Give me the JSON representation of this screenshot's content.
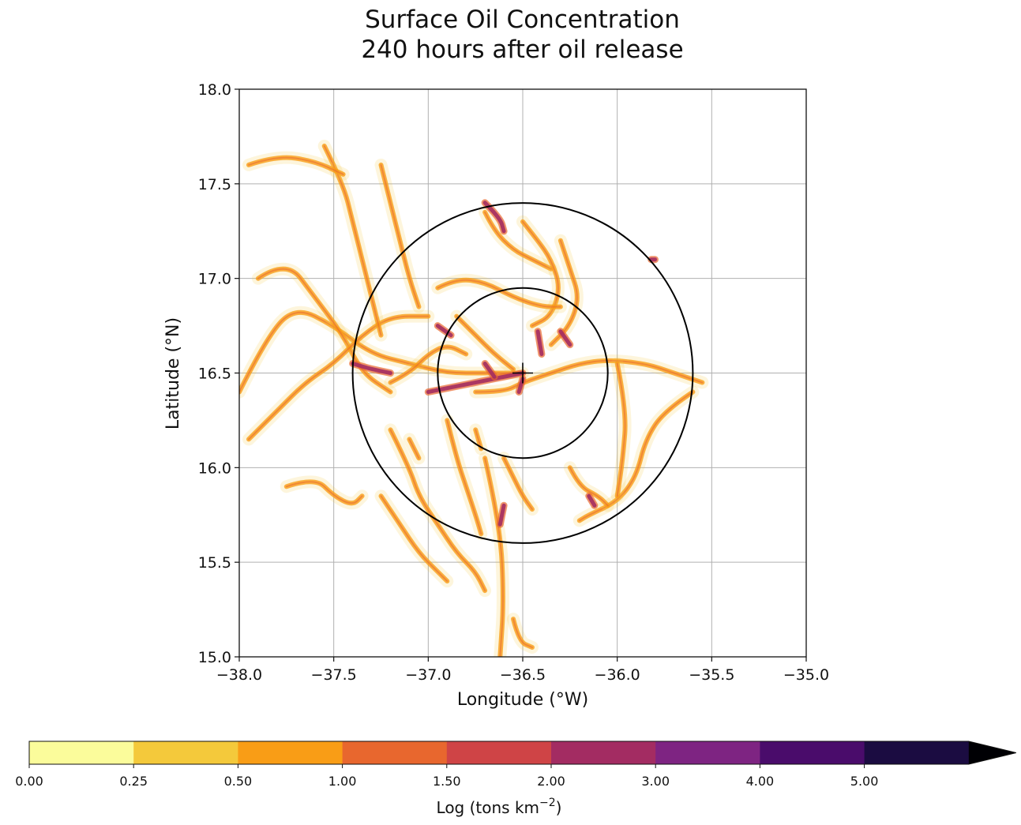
{
  "chart_data": {
    "type": "heatmap",
    "title": "Surface Oil Concentration",
    "subtitle": "240 hours after oil release",
    "xlabel": "Longitude (°W)",
    "ylabel": "Latitude (°N)",
    "xlim": [
      -38.0,
      -35.0
    ],
    "ylim": [
      15.0,
      18.0
    ],
    "xticks": [
      -38.0,
      -37.5,
      -37.0,
      -36.5,
      -36.0,
      -35.5,
      -35.0
    ],
    "xtick_labels": [
      "−38.0",
      "−37.5",
      "−37.0",
      "−36.5",
      "−36.0",
      "−35.5",
      "−35.0"
    ],
    "yticks": [
      15.0,
      15.5,
      16.0,
      16.5,
      17.0,
      17.5,
      18.0
    ],
    "ytick_labels": [
      "15.0",
      "15.5",
      "16.0",
      "16.5",
      "17.0",
      "17.5",
      "18.0"
    ],
    "grid": true,
    "release_point": {
      "lon": -36.5,
      "lat": 16.5
    },
    "range_circles_deg": [
      0.45,
      0.9
    ],
    "colorbar": {
      "label": "Log (tons km",
      "label_sup": "−2",
      "label_end": ")",
      "boundaries": [
        0.0,
        0.25,
        0.5,
        1.0,
        1.5,
        2.0,
        3.0,
        4.0,
        5.0
      ],
      "tick_labels": [
        "0.00",
        "0.25",
        "0.50",
        "1.00",
        "1.50",
        "2.00",
        "3.00",
        "4.00",
        "5.00"
      ],
      "colors": [
        "#fbfc9b",
        "#f4c93b",
        "#f99d16",
        "#e8672e",
        "#cf4446",
        "#a32c62",
        "#7e2482",
        "#4a0c6b",
        "#1b0c41"
      ],
      "extend_color": "#000004",
      "extend": "max"
    },
    "oil_trails": [
      {
        "level": "low",
        "points": [
          [
            -38.0,
            16.4
          ],
          [
            -37.85,
            16.7
          ],
          [
            -37.7,
            16.85
          ],
          [
            -37.5,
            16.75
          ],
          [
            -37.3,
            16.6
          ],
          [
            -37.1,
            16.55
          ],
          [
            -36.9,
            16.5
          ],
          [
            -36.7,
            16.5
          ],
          [
            -36.5,
            16.5
          ]
        ]
      },
      {
        "level": "low",
        "points": [
          [
            -37.9,
            17.0
          ],
          [
            -37.75,
            17.1
          ],
          [
            -37.6,
            16.9
          ],
          [
            -37.45,
            16.7
          ],
          [
            -37.35,
            16.5
          ],
          [
            -37.2,
            16.4
          ]
        ]
      },
      {
        "level": "low",
        "points": [
          [
            -37.95,
            16.15
          ],
          [
            -37.8,
            16.3
          ],
          [
            -37.65,
            16.45
          ],
          [
            -37.5,
            16.55
          ],
          [
            -37.35,
            16.7
          ],
          [
            -37.2,
            16.8
          ],
          [
            -37.0,
            16.8
          ]
        ]
      },
      {
        "level": "low",
        "points": [
          [
            -37.55,
            17.7
          ],
          [
            -37.45,
            17.5
          ],
          [
            -37.4,
            17.3
          ],
          [
            -37.35,
            17.1
          ],
          [
            -37.3,
            16.9
          ],
          [
            -37.25,
            16.7
          ]
        ]
      },
      {
        "level": "low",
        "points": [
          [
            -37.25,
            17.6
          ],
          [
            -37.2,
            17.4
          ],
          [
            -37.15,
            17.2
          ],
          [
            -37.1,
            17.0
          ],
          [
            -37.05,
            16.85
          ]
        ]
      },
      {
        "level": "low",
        "points": [
          [
            -37.95,
            17.6
          ],
          [
            -37.8,
            17.65
          ],
          [
            -37.6,
            17.62
          ],
          [
            -37.45,
            17.55
          ]
        ]
      },
      {
        "level": "low",
        "points": [
          [
            -36.7,
            17.35
          ],
          [
            -36.65,
            17.25
          ],
          [
            -36.55,
            17.15
          ],
          [
            -36.45,
            17.1
          ],
          [
            -36.35,
            17.05
          ]
        ]
      },
      {
        "level": "low",
        "points": [
          [
            -36.5,
            17.3
          ],
          [
            -36.42,
            17.2
          ],
          [
            -36.35,
            17.1
          ],
          [
            -36.3,
            16.95
          ],
          [
            -36.35,
            16.8
          ],
          [
            -36.45,
            16.75
          ]
        ]
      },
      {
        "level": "low",
        "points": [
          [
            -36.3,
            17.2
          ],
          [
            -36.25,
            17.05
          ],
          [
            -36.2,
            16.9
          ],
          [
            -36.25,
            16.75
          ],
          [
            -36.35,
            16.65
          ]
        ]
      },
      {
        "level": "low",
        "points": [
          [
            -36.85,
            16.8
          ],
          [
            -36.75,
            16.7
          ],
          [
            -36.65,
            16.6
          ],
          [
            -36.55,
            16.52
          ]
        ]
      },
      {
        "level": "low",
        "points": [
          [
            -36.75,
            16.4
          ],
          [
            -36.6,
            16.4
          ],
          [
            -36.5,
            16.45
          ],
          [
            -36.35,
            16.5
          ],
          [
            -36.2,
            16.55
          ],
          [
            -36.05,
            16.57
          ],
          [
            -35.85,
            16.55
          ],
          [
            -35.7,
            16.5
          ],
          [
            -35.55,
            16.45
          ]
        ]
      },
      {
        "level": "low",
        "points": [
          [
            -35.6,
            16.4
          ],
          [
            -35.75,
            16.3
          ],
          [
            -35.85,
            16.15
          ],
          [
            -35.9,
            15.95
          ],
          [
            -36.0,
            15.82
          ],
          [
            -36.15,
            15.75
          ],
          [
            -36.2,
            15.72
          ]
        ]
      },
      {
        "level": "low",
        "points": [
          [
            -36.0,
            16.55
          ],
          [
            -35.95,
            16.3
          ],
          [
            -35.97,
            16.05
          ],
          [
            -36.0,
            15.85
          ]
        ]
      },
      {
        "level": "low",
        "points": [
          [
            -36.25,
            16.0
          ],
          [
            -36.2,
            15.9
          ],
          [
            -36.1,
            15.85
          ],
          [
            -36.05,
            15.8
          ]
        ]
      },
      {
        "level": "low",
        "points": [
          [
            -37.2,
            16.2
          ],
          [
            -37.1,
            16.0
          ],
          [
            -37.05,
            15.85
          ],
          [
            -36.95,
            15.7
          ],
          [
            -36.85,
            15.55
          ],
          [
            -36.75,
            15.45
          ],
          [
            -36.7,
            15.35
          ]
        ]
      },
      {
        "level": "low",
        "points": [
          [
            -37.25,
            15.85
          ],
          [
            -37.15,
            15.7
          ],
          [
            -37.05,
            15.55
          ],
          [
            -36.95,
            15.45
          ],
          [
            -36.9,
            15.4
          ]
        ]
      },
      {
        "level": "low",
        "points": [
          [
            -36.9,
            16.25
          ],
          [
            -36.85,
            16.05
          ],
          [
            -36.8,
            15.9
          ],
          [
            -36.75,
            15.75
          ],
          [
            -36.72,
            15.65
          ]
        ]
      },
      {
        "level": "low",
        "points": [
          [
            -36.6,
            16.05
          ],
          [
            -36.55,
            15.95
          ],
          [
            -36.5,
            15.85
          ],
          [
            -36.45,
            15.78
          ]
        ]
      },
      {
        "level": "low",
        "points": [
          [
            -36.75,
            16.2
          ],
          [
            -36.72,
            16.1
          ]
        ]
      },
      {
        "level": "low",
        "points": [
          [
            -37.1,
            16.15
          ],
          [
            -37.05,
            16.05
          ]
        ]
      },
      {
        "level": "low",
        "points": [
          [
            -36.7,
            16.05
          ],
          [
            -36.62,
            15.7
          ],
          [
            -36.6,
            15.3
          ],
          [
            -36.62,
            15.0
          ]
        ]
      },
      {
        "level": "low",
        "points": [
          [
            -36.95,
            16.95
          ],
          [
            -36.85,
            17.0
          ],
          [
            -36.7,
            16.98
          ],
          [
            -36.55,
            16.9
          ],
          [
            -36.4,
            16.85
          ],
          [
            -36.3,
            16.85
          ]
        ]
      },
      {
        "level": "low",
        "points": [
          [
            -37.2,
            16.45
          ],
          [
            -37.1,
            16.5
          ],
          [
            -37.0,
            16.6
          ],
          [
            -36.9,
            16.65
          ],
          [
            -36.8,
            16.6
          ]
        ]
      },
      {
        "level": "low",
        "points": [
          [
            -37.75,
            15.9
          ],
          [
            -37.6,
            15.95
          ],
          [
            -37.5,
            15.85
          ],
          [
            -37.4,
            15.8
          ],
          [
            -37.35,
            15.85
          ]
        ]
      },
      {
        "level": "low",
        "points": [
          [
            -36.55,
            15.2
          ],
          [
            -36.52,
            15.08
          ],
          [
            -36.45,
            15.05
          ]
        ]
      },
      {
        "level": "mid",
        "points": [
          [
            -36.7,
            17.4
          ],
          [
            -36.62,
            17.32
          ],
          [
            -36.6,
            17.25
          ]
        ]
      },
      {
        "level": "mid",
        "points": [
          [
            -35.82,
            17.1
          ],
          [
            -35.8,
            17.1
          ]
        ]
      },
      {
        "level": "mid",
        "points": [
          [
            -36.5,
            16.5
          ],
          [
            -36.6,
            16.48
          ],
          [
            -36.75,
            16.45
          ],
          [
            -36.9,
            16.42
          ],
          [
            -37.0,
            16.4
          ]
        ]
      },
      {
        "level": "mid",
        "points": [
          [
            -36.5,
            16.47
          ],
          [
            -36.52,
            16.4
          ]
        ]
      },
      {
        "level": "mid",
        "points": [
          [
            -36.4,
            16.6
          ],
          [
            -36.42,
            16.72
          ]
        ]
      },
      {
        "level": "mid",
        "points": [
          [
            -36.7,
            16.55
          ],
          [
            -36.65,
            16.48
          ]
        ]
      },
      {
        "level": "mid",
        "points": [
          [
            -36.6,
            15.8
          ],
          [
            -36.62,
            15.7
          ]
        ]
      },
      {
        "level": "mid",
        "points": [
          [
            -36.15,
            15.85
          ],
          [
            -36.12,
            15.8
          ]
        ]
      },
      {
        "level": "mid",
        "points": [
          [
            -37.2,
            16.5
          ],
          [
            -37.3,
            16.52
          ],
          [
            -37.4,
            16.55
          ]
        ]
      },
      {
        "level": "mid",
        "points": [
          [
            -36.25,
            16.65
          ],
          [
            -36.3,
            16.72
          ]
        ]
      },
      {
        "level": "mid",
        "points": [
          [
            -36.95,
            16.75
          ],
          [
            -36.88,
            16.7
          ]
        ]
      }
    ]
  }
}
